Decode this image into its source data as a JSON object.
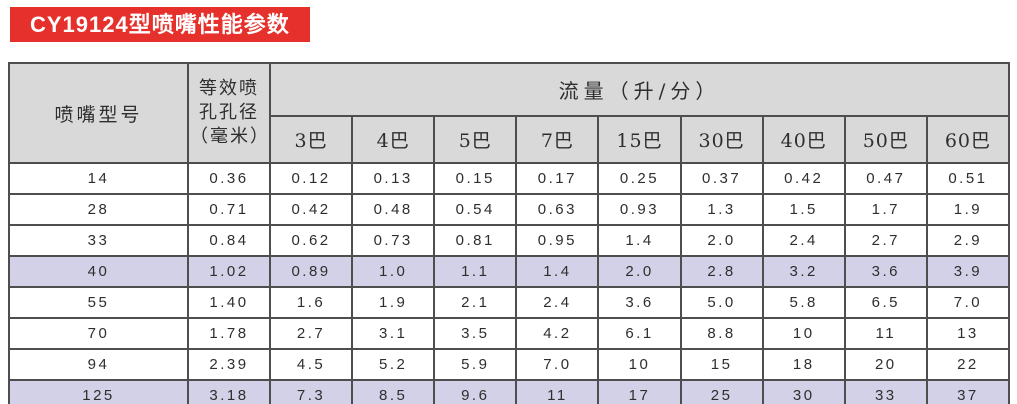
{
  "title": {
    "text": "CY19124型喷嘴性能参数",
    "bg_color": "#e5302b",
    "text_color": "#ffffff"
  },
  "table": {
    "header": {
      "model_label": "喷嘴型号",
      "diameter_label": "等效喷\n孔孔径\n（毫米）",
      "flow_label": "流量（升/分）",
      "pressure_columns": [
        "3巴",
        "4巴",
        "5巴",
        "7巴",
        "15巴",
        "30巴",
        "40巴",
        "50巴",
        "60巴"
      ]
    },
    "rows": [
      {
        "model": "14",
        "diameter": "0.36",
        "flows": [
          "0.12",
          "0.13",
          "0.15",
          "0.17",
          "0.25",
          "0.37",
          "0.42",
          "0.47",
          "0.51"
        ],
        "highlighted": false
      },
      {
        "model": "28",
        "diameter": "0.71",
        "flows": [
          "0.42",
          "0.48",
          "0.54",
          "0.63",
          "0.93",
          "1.3",
          "1.5",
          "1.7",
          "1.9"
        ],
        "highlighted": false
      },
      {
        "model": "33",
        "diameter": "0.84",
        "flows": [
          "0.62",
          "0.73",
          "0.81",
          "0.95",
          "1.4",
          "2.0",
          "2.4",
          "2.7",
          "2.9"
        ],
        "highlighted": false
      },
      {
        "model": "40",
        "diameter": "1.02",
        "flows": [
          "0.89",
          "1.0",
          "1.1",
          "1.4",
          "2.0",
          "2.8",
          "3.2",
          "3.6",
          "3.9"
        ],
        "highlighted": true
      },
      {
        "model": "55",
        "diameter": "1.40",
        "flows": [
          "1.6",
          "1.9",
          "2.1",
          "2.4",
          "3.6",
          "5.0",
          "5.8",
          "6.5",
          "7.0"
        ],
        "highlighted": false
      },
      {
        "model": "70",
        "diameter": "1.78",
        "flows": [
          "2.7",
          "3.1",
          "3.5",
          "4.2",
          "6.1",
          "8.8",
          "10",
          "11",
          "13"
        ],
        "highlighted": false
      },
      {
        "model": "94",
        "diameter": "2.39",
        "flows": [
          "4.5",
          "5.2",
          "5.9",
          "7.0",
          "10",
          "15",
          "18",
          "20",
          "22"
        ],
        "highlighted": false
      },
      {
        "model": "125",
        "diameter": "3.18",
        "flows": [
          "7.3",
          "8.5",
          "9.6",
          "11",
          "17",
          "25",
          "30",
          "33",
          "37"
        ],
        "highlighted": true
      }
    ],
    "colors": {
      "header_bg": "#d9d9d9",
      "highlight_bg": "#d3d1e7",
      "border": "#4e4e4e",
      "text": "#2e2e2e"
    }
  }
}
